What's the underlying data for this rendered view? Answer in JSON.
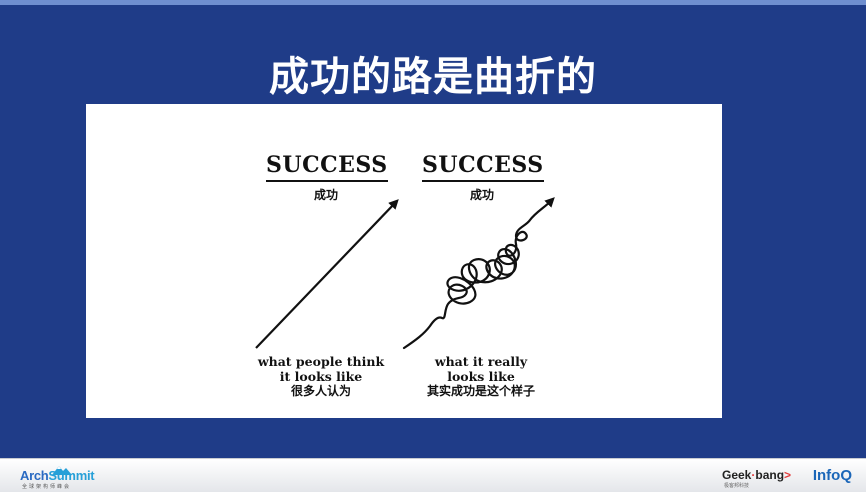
{
  "slide": {
    "title": "成功的路是曲折的"
  },
  "figure": {
    "left": {
      "heading": "SUCCESS",
      "heading_cn": "成功",
      "caption_line1": "what people think",
      "caption_line2": "it looks like",
      "caption_cn": "很多人认为"
    },
    "right": {
      "heading": "SUCCESS",
      "heading_cn": "成功",
      "caption_line1": "what it really",
      "caption_line2": "looks like",
      "caption_cn": "其实成功是这个样子"
    }
  },
  "footer": {
    "left_logo": {
      "name_part1": "Arch",
      "name_part2": "Summit",
      "subtitle": "全球架构师峰会"
    },
    "right_logo": {
      "geek_part1": "Geek",
      "geek_part2": "bang",
      "geek_mark": ">",
      "geek_subtitle": "极客邦科技",
      "infoq": "InfoQ"
    }
  },
  "colors": {
    "background": "#1f3c88",
    "figure_bg": "#ffffff",
    "title_text": "#ffffff"
  }
}
